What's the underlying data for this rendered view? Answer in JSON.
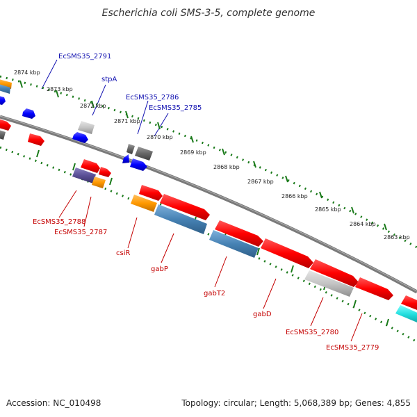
{
  "title": "Escherichia coli SMS-3-5, complete genome",
  "footer": {
    "accession": "Accession: NC_010498",
    "summary": "Topology: circular; Length: 5,068,389 bp; Genes: 4,855"
  },
  "colors": {
    "plus_strand_label": "#1010b0",
    "minus_strand_label": "#c40000",
    "tick_marks": "#1a7a1a",
    "backbone": "#7a7a7a"
  },
  "kbp_ticks": [
    "2874 kbp",
    "2873 kbp",
    "2872 kbp",
    "2871 kbp",
    "2870 kbp",
    "2869 kbp",
    "2868 kbp",
    "2867 kbp",
    "2866 kbp",
    "2865 kbp",
    "2864 kbp",
    "2863 kbp"
  ],
  "plus_strand_labels": [
    "EcSMS35_2791",
    "stpA",
    "EcSMS35_2786",
    "EcSMS35_2785"
  ],
  "minus_strand_labels": [
    "EcSMS35_2788",
    "EcSMS35_2787",
    "csiR",
    "gabP",
    "gabT2",
    "gabD",
    "EcSMS35_2780",
    "EcSMS35_2779"
  ]
}
